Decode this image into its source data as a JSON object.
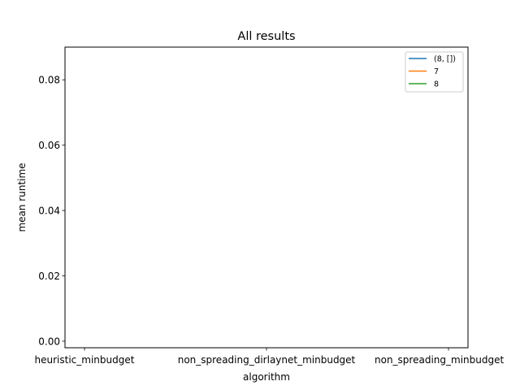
{
  "chart_data": {
    "type": "line",
    "title": "All results",
    "xlabel": "algorithm",
    "ylabel": "mean runtime",
    "categories": [
      "heuristic_minbudget",
      "non_spreading_dirlaynet_minbudget",
      "non_spreading_minbudget"
    ],
    "ylim": [
      -0.002,
      0.09
    ],
    "yticks": [
      0.0,
      0.02,
      0.04,
      0.06,
      0.08
    ],
    "ytick_labels": [
      "0.00",
      "0.02",
      "0.04",
      "0.06",
      "0.08"
    ],
    "grid": false,
    "legend_position": "upper right",
    "series": [
      {
        "name": "(8, [])",
        "color": "#1f77b4",
        "values": [
          null,
          null,
          null
        ]
      },
      {
        "name": "7",
        "color": "#ff7f0e",
        "values": [
          null,
          null,
          null
        ]
      },
      {
        "name": "8",
        "color": "#2ca02c",
        "values": [
          null,
          null,
          null
        ]
      }
    ]
  }
}
